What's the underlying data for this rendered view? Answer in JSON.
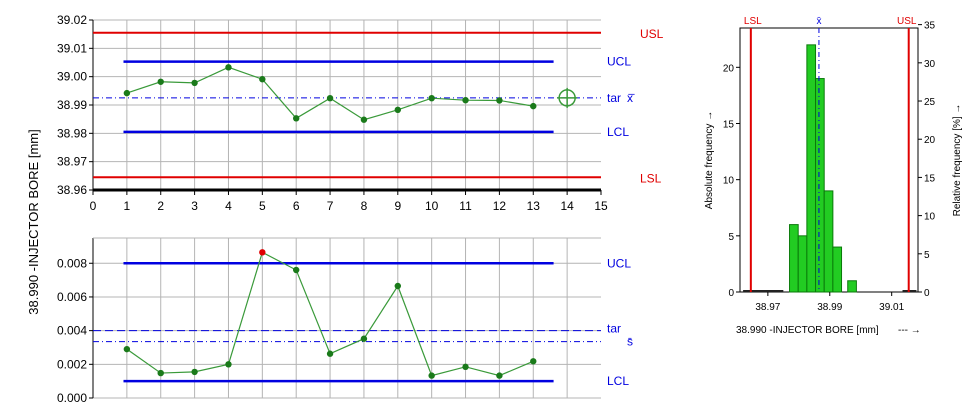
{
  "chart_data": [
    {
      "type": "line",
      "ylabel": "38.990 -INJECTOR BORE [mm]",
      "xlim": [
        0,
        15
      ],
      "ylim": [
        38.96,
        39.02
      ],
      "x_ticks": [
        "0",
        "1",
        "2",
        "3",
        "4",
        "5",
        "6",
        "7",
        "8",
        "9",
        "10",
        "11",
        "12",
        "13",
        "14",
        "15"
      ],
      "y_ticks": [
        "38.96",
        "38.97",
        "38.98",
        "38.99",
        "39.00",
        "39.01",
        "39.02"
      ],
      "x": [
        1,
        2,
        3,
        4,
        5,
        6,
        7,
        8,
        9,
        10,
        11,
        12,
        13
      ],
      "values": [
        38.9942,
        38.9982,
        38.9978,
        39.0033,
        38.9991,
        38.9853,
        38.9924,
        38.9848,
        38.9883,
        38.9924,
        38.9917,
        38.9916,
        38.9896
      ],
      "limits": {
        "USL": {
          "label": "USL",
          "value": 39.0155,
          "color": "#e00000"
        },
        "UCL": {
          "label": "UCL",
          "value": 39.0053,
          "color": "#0000e0"
        },
        "TAR": {
          "label": "tar",
          "symbol": "x̄̄",
          "value": 38.9925,
          "color": "#0000e0"
        },
        "LCL": {
          "label": "LCL",
          "value": 38.9805,
          "color": "#0000e0"
        },
        "LSL": {
          "label": "LSL",
          "value": 38.9645,
          "color": "#e00000"
        }
      },
      "grid": true
    },
    {
      "type": "line",
      "xlim": [
        0,
        15
      ],
      "ylim": [
        0,
        0.0095
      ],
      "y_ticks": [
        "0.000",
        "0.002",
        "0.004",
        "0.006",
        "0.008"
      ],
      "x": [
        1,
        2,
        3,
        4,
        5,
        6,
        7,
        8,
        9,
        10,
        11,
        12,
        13
      ],
      "values": [
        0.0029,
        0.00148,
        0.00155,
        0.002,
        0.00865,
        0.0076,
        0.00263,
        0.00352,
        0.00665,
        0.00133,
        0.00185,
        0.00133,
        0.00218
      ],
      "highlight_index": 4,
      "limits": {
        "UCL": {
          "label": "UCL",
          "value": 0.008,
          "color": "#0000e0"
        },
        "TAR": {
          "label": "tar",
          "symbol": "s̄",
          "value": 0.004,
          "mean": 0.00335,
          "color": "#0000e0"
        },
        "LCL": {
          "label": "LCL",
          "value": 0.001,
          "color": "#0000e0"
        }
      },
      "grid": true
    },
    {
      "type": "bar",
      "xlabel": "38.990 -INJECTOR BORE [mm]",
      "xlabel_suffix": "--- →",
      "ylabel_left": "Absolute frequency →",
      "ylabel_right": "Relative frequency [%] →",
      "x_ticks": [
        "38.97",
        "38.99",
        "39.01"
      ],
      "y_ticks_left": [
        "0",
        "5",
        "10",
        "15",
        "20"
      ],
      "y_ticks_right": [
        "0",
        "5",
        "10",
        "15",
        "20",
        "25",
        "30",
        "35"
      ],
      "xlim": [
        38.961,
        39.0185
      ],
      "ylim": [
        0,
        23.5
      ],
      "bins": [
        {
          "from": 38.977,
          "to": 38.9798,
          "count": 6
        },
        {
          "from": 38.9798,
          "to": 38.9826,
          "count": 5
        },
        {
          "from": 38.9826,
          "to": 38.9854,
          "count": 22
        },
        {
          "from": 38.9854,
          "to": 38.9882,
          "count": 19
        },
        {
          "from": 38.9882,
          "to": 38.991,
          "count": 9
        },
        {
          "from": 38.991,
          "to": 38.9938,
          "count": 4
        },
        {
          "from": 38.9958,
          "to": 38.9986,
          "count": 1
        }
      ],
      "limits": {
        "LSL": {
          "label": "LSL",
          "value": 38.9645,
          "color": "#e00000"
        },
        "MEAN": {
          "label": "x̄",
          "value": 38.9865,
          "color": "#0000e0"
        },
        "USL": {
          "label": "USL",
          "value": 39.0155,
          "color": "#e00000"
        }
      }
    }
  ],
  "colors": {
    "line": "#3a9a3a",
    "point": "#1a7a1a",
    "bar": "#22cc22",
    "bar_edge": "#0a7a0a",
    "grid": "#b4b4b4",
    "out": "#e00000"
  }
}
